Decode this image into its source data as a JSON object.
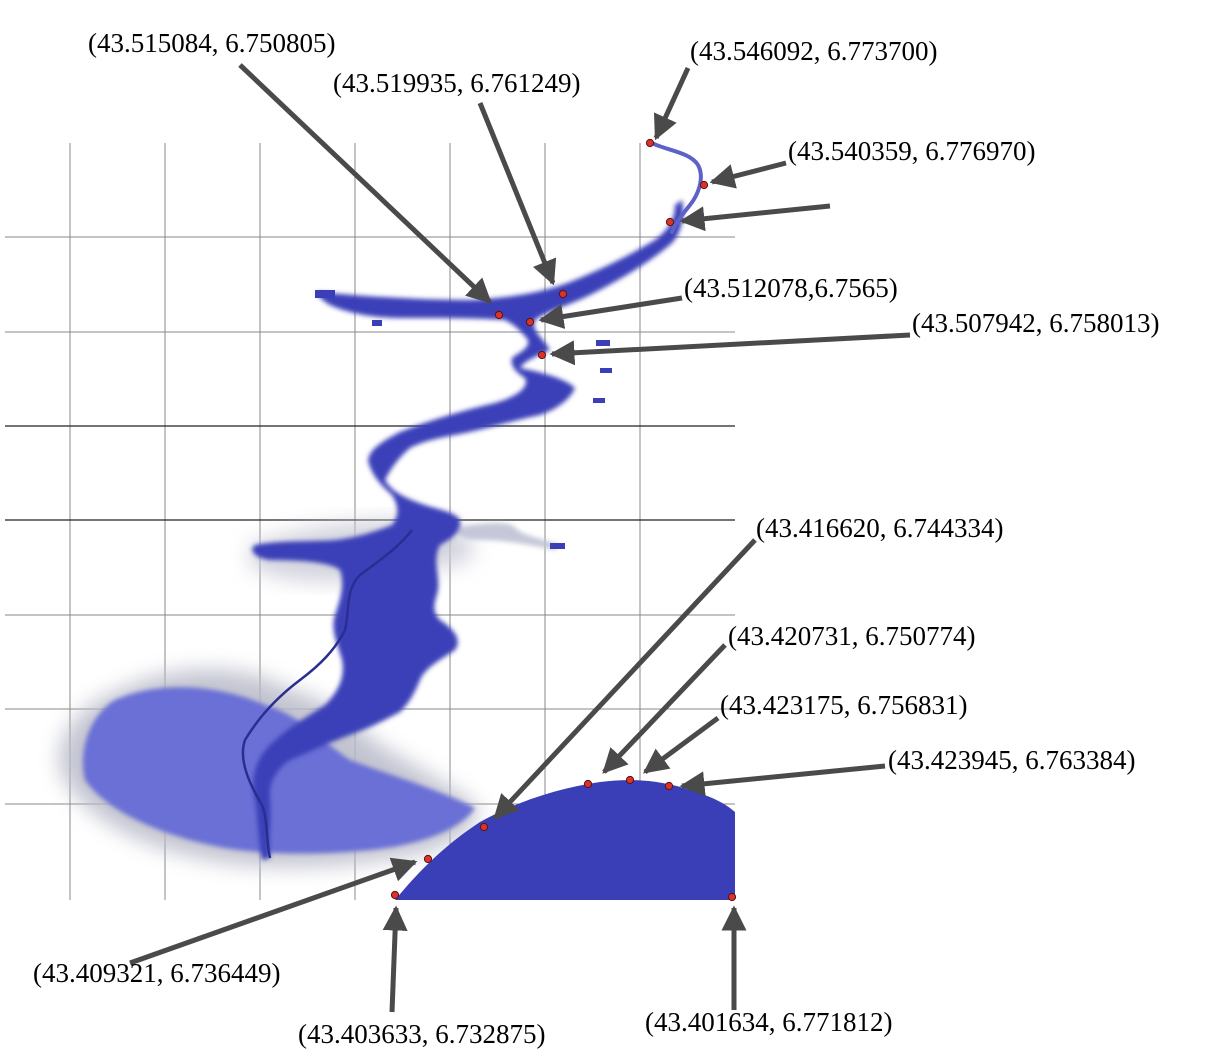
{
  "map": {
    "water_color": "#3a3fb8",
    "water_light": "#6b6fd6",
    "haze_color": "#b8bac8",
    "marker_color": "#d8342a",
    "arrow_color": "#4a4a4a"
  },
  "points": [
    {
      "id": "p1",
      "label": "(43.515084, 6.750805)"
    },
    {
      "id": "p2",
      "label": "(43.519935, 6.761249)"
    },
    {
      "id": "p3",
      "label": "(43.546092, 6.773700)"
    },
    {
      "id": "p4",
      "label": "(43.540359, 6.776970)"
    },
    {
      "id": "p5",
      "label": ""
    },
    {
      "id": "p6",
      "label": "(43.512078,6.7565)"
    },
    {
      "id": "p7",
      "label": "(43.507942, 6.758013)"
    },
    {
      "id": "p8",
      "label": "(43.416620, 6.744334)"
    },
    {
      "id": "p9",
      "label": "(43.420731, 6.750774)"
    },
    {
      "id": "p10",
      "label": "(43.423175, 6.756831)"
    },
    {
      "id": "p11",
      "label": "(43.423945, 6.763384)"
    },
    {
      "id": "p12",
      "label": "(43.409321, 6.736449)"
    },
    {
      "id": "p13",
      "label": "(43.403633, 6.732875)"
    },
    {
      "id": "p14",
      "label": "(43.401634, 6.771812)"
    }
  ]
}
